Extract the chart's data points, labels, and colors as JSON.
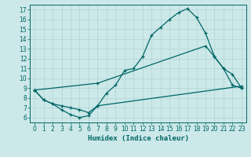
{
  "xlabel": "Humidex (Indice chaleur)",
  "xlim": [
    -0.5,
    23.5
  ],
  "ylim": [
    5.5,
    17.5
  ],
  "yticks": [
    6,
    7,
    8,
    9,
    10,
    11,
    12,
    13,
    14,
    15,
    16,
    17
  ],
  "xticks": [
    0,
    1,
    2,
    3,
    4,
    5,
    6,
    7,
    8,
    9,
    10,
    11,
    12,
    13,
    14,
    15,
    16,
    17,
    18,
    19,
    20,
    21,
    22,
    23
  ],
  "bg_color": "#cce8e8",
  "grid_color": "#b0d4d4",
  "line_color": "#006666",
  "line1_x": [
    0,
    1,
    2,
    3,
    4,
    5,
    6,
    7,
    8,
    9,
    10,
    11,
    12,
    13,
    14,
    15,
    16,
    17,
    18,
    19,
    20,
    21,
    22,
    23
  ],
  "line1_y": [
    8.8,
    7.8,
    7.4,
    6.8,
    6.3,
    6.0,
    6.2,
    7.2,
    8.5,
    9.3,
    10.8,
    11.0,
    12.2,
    14.4,
    15.2,
    16.0,
    16.7,
    17.1,
    16.2,
    14.6,
    12.2,
    11.0,
    9.3,
    9.0
  ],
  "line2_x": [
    0,
    7,
    19,
    20,
    21,
    22,
    23
  ],
  "line2_y": [
    8.8,
    9.5,
    13.3,
    12.2,
    11.0,
    10.4,
    9.0
  ],
  "line3_x": [
    0,
    1,
    2,
    3,
    4,
    5,
    6,
    7,
    23
  ],
  "line3_y": [
    8.8,
    7.8,
    7.4,
    7.2,
    7.0,
    6.8,
    6.5,
    7.2,
    9.2
  ]
}
